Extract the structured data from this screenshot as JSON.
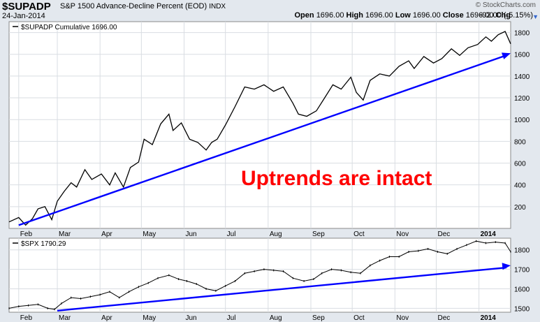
{
  "header": {
    "symbol": "$SUPADP",
    "title": "S&P 1500 Advance-Decline Percent (EOD)",
    "exchange": "INDX",
    "date": "24-Jan-2014",
    "brand": "© StockCharts.com",
    "open_label": "Open",
    "open": "1696.00",
    "high_label": "High",
    "high": "1696.00",
    "low_label": "Low",
    "low": "1696.00",
    "close_label": "Close",
    "close": "1696.00",
    "chg_label": "Chg",
    "chg": "-92.00 (-5.15%)",
    "chg_icon": "triangle-down-icon"
  },
  "chart_data": [
    {
      "type": "line",
      "legend": "$SUPADP Cumulative 1696.00",
      "legend_position": "top-left",
      "annotation": "Uptrends are intact",
      "annotation_color": "#ff0000",
      "line_color": "#000000",
      "trendline_color": "#0000ff",
      "grid": true,
      "yticks": [
        200,
        400,
        600,
        800,
        1000,
        1200,
        1400,
        1600,
        1800
      ],
      "ylim": [
        0,
        1900
      ],
      "xlim": [
        "2013-01-25",
        "2014-01-24"
      ],
      "month_ticks": [
        {
          "label": "Feb",
          "date": "2013-02-01"
        },
        {
          "label": "Mar",
          "date": "2013-03-01"
        },
        {
          "label": "Apr",
          "date": "2013-04-01"
        },
        {
          "label": "May",
          "date": "2013-05-01"
        },
        {
          "label": "Jun",
          "date": "2013-06-01"
        },
        {
          "label": "Jul",
          "date": "2013-07-01"
        },
        {
          "label": "Aug",
          "date": "2013-08-01"
        },
        {
          "label": "Sep",
          "date": "2013-09-01"
        },
        {
          "label": "Oct",
          "date": "2013-10-01"
        },
        {
          "label": "Nov",
          "date": "2013-11-01"
        },
        {
          "label": "Dec",
          "date": "2013-12-01"
        },
        {
          "label": "2014",
          "date": "2014-01-01"
        }
      ],
      "series": [
        {
          "x": [
            "2013-01-25",
            "2013-02-01",
            "2013-02-06",
            "2013-02-11",
            "2013-02-15",
            "2013-02-20",
            "2013-02-25",
            "2013-03-01",
            "2013-03-06",
            "2013-03-11",
            "2013-03-15",
            "2013-03-21",
            "2013-03-26",
            "2013-04-02",
            "2013-04-08",
            "2013-04-12",
            "2013-04-18",
            "2013-04-23",
            "2013-04-29",
            "2013-05-03",
            "2013-05-09",
            "2013-05-15",
            "2013-05-21",
            "2013-05-24",
            "2013-05-30",
            "2013-06-05",
            "2013-06-11",
            "2013-06-17",
            "2013-06-21",
            "2013-06-25",
            "2013-07-01",
            "2013-07-08",
            "2013-07-15",
            "2013-07-22",
            "2013-07-29",
            "2013-08-05",
            "2013-08-12",
            "2013-08-19",
            "2013-08-23",
            "2013-08-29",
            "2013-09-05",
            "2013-09-11",
            "2013-09-17",
            "2013-09-23",
            "2013-09-30",
            "2013-10-04",
            "2013-10-09",
            "2013-10-14",
            "2013-10-21",
            "2013-10-28",
            "2013-11-04",
            "2013-11-11",
            "2013-11-15",
            "2013-11-22",
            "2013-11-29",
            "2013-12-05",
            "2013-12-12",
            "2013-12-18",
            "2013-12-24",
            "2013-12-31",
            "2014-01-06",
            "2014-01-10",
            "2014-01-15",
            "2014-01-20",
            "2014-01-24"
          ],
          "y": [
            60,
            100,
            30,
            90,
            180,
            200,
            80,
            250,
            340,
            420,
            380,
            540,
            450,
            500,
            400,
            510,
            380,
            560,
            610,
            820,
            770,
            960,
            1050,
            900,
            970,
            820,
            790,
            720,
            790,
            820,
            950,
            1120,
            1300,
            1280,
            1320,
            1260,
            1300,
            1150,
            1050,
            1030,
            1080,
            1200,
            1320,
            1280,
            1390,
            1250,
            1180,
            1360,
            1420,
            1400,
            1490,
            1540,
            1470,
            1580,
            1520,
            1560,
            1650,
            1590,
            1660,
            1690,
            1760,
            1720,
            1780,
            1810,
            1696
          ]
        }
      ],
      "trendline": {
        "x": [
          "2013-02-01",
          "2014-01-24"
        ],
        "y": [
          30,
          1610
        ]
      }
    },
    {
      "type": "bar",
      "legend": "$SPX 1790.29",
      "legend_position": "top-left",
      "bar_color": "#000000",
      "trendline_color": "#0000ff",
      "grid": true,
      "yticks": [
        1500,
        1600,
        1700,
        1800
      ],
      "ylim": [
        1480,
        1860
      ],
      "xlim": [
        "2013-01-25",
        "2014-01-24"
      ],
      "month_ticks": [
        {
          "label": "Feb",
          "date": "2013-02-01"
        },
        {
          "label": "Mar",
          "date": "2013-03-01"
        },
        {
          "label": "Apr",
          "date": "2013-04-01"
        },
        {
          "label": "May",
          "date": "2013-05-01"
        },
        {
          "label": "Jun",
          "date": "2013-06-01"
        },
        {
          "label": "Jul",
          "date": "2013-07-01"
        },
        {
          "label": "Aug",
          "date": "2013-08-01"
        },
        {
          "label": "Sep",
          "date": "2013-09-01"
        },
        {
          "label": "Oct",
          "date": "2013-10-01"
        },
        {
          "label": "Nov",
          "date": "2013-11-01"
        },
        {
          "label": "Dec",
          "date": "2013-12-01"
        },
        {
          "label": "2014",
          "date": "2014-01-01"
        }
      ],
      "series": [
        {
          "x": [
            "2013-01-25",
            "2013-02-01",
            "2013-02-08",
            "2013-02-15",
            "2013-02-22",
            "2013-02-27",
            "2013-03-04",
            "2013-03-11",
            "2013-03-18",
            "2013-03-25",
            "2013-04-01",
            "2013-04-08",
            "2013-04-15",
            "2013-04-22",
            "2013-04-29",
            "2013-05-06",
            "2013-05-13",
            "2013-05-21",
            "2013-05-28",
            "2013-06-03",
            "2013-06-10",
            "2013-06-17",
            "2013-06-24",
            "2013-07-01",
            "2013-07-08",
            "2013-07-15",
            "2013-07-22",
            "2013-07-29",
            "2013-08-05",
            "2013-08-12",
            "2013-08-19",
            "2013-08-27",
            "2013-09-03",
            "2013-09-09",
            "2013-09-16",
            "2013-09-23",
            "2013-09-30",
            "2013-10-07",
            "2013-10-14",
            "2013-10-21",
            "2013-10-28",
            "2013-11-04",
            "2013-11-11",
            "2013-11-18",
            "2013-11-25",
            "2013-12-02",
            "2013-12-09",
            "2013-12-16",
            "2013-12-23",
            "2013-12-30",
            "2014-01-06",
            "2014-01-13",
            "2014-01-20",
            "2014-01-24"
          ],
          "y": [
            1500,
            1510,
            1515,
            1520,
            1500,
            1495,
            1525,
            1555,
            1550,
            1560,
            1570,
            1585,
            1555,
            1585,
            1610,
            1630,
            1655,
            1670,
            1650,
            1640,
            1625,
            1600,
            1590,
            1615,
            1640,
            1680,
            1690,
            1700,
            1695,
            1690,
            1655,
            1640,
            1650,
            1680,
            1700,
            1695,
            1685,
            1680,
            1720,
            1745,
            1765,
            1765,
            1790,
            1795,
            1805,
            1790,
            1780,
            1805,
            1825,
            1845,
            1835,
            1840,
            1835,
            1790
          ]
        }
      ],
      "trendline": {
        "x": [
          "2013-03-01",
          "2014-01-24"
        ],
        "y": [
          1488,
          1720
        ]
      }
    }
  ]
}
